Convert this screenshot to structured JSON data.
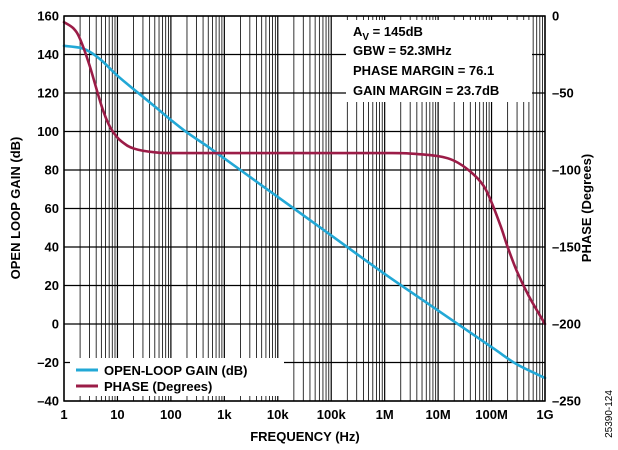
{
  "chart_data": {
    "type": "line",
    "xlabel": "FREQUENCY (Hz)",
    "ylabel_left": "OPEN LOOP GAIN (dB)",
    "ylabel_right": "PHASE (Degrees)",
    "x_scale": "log",
    "xlim": [
      1,
      1000000000
    ],
    "ylim_left": [
      -40,
      160
    ],
    "ylim_right": [
      -250,
      0
    ],
    "grid": true,
    "legend_position": "bottom-left",
    "x_ticks": [
      {
        "value": 1,
        "label": "1"
      },
      {
        "value": 10,
        "label": "10"
      },
      {
        "value": 100,
        "label": "100"
      },
      {
        "value": 1000,
        "label": "1k"
      },
      {
        "value": 10000,
        "label": "10k"
      },
      {
        "value": 100000,
        "label": "100k"
      },
      {
        "value": 1000000,
        "label": "1M"
      },
      {
        "value": 10000000,
        "label": "10M"
      },
      {
        "value": 100000000,
        "label": "100M"
      },
      {
        "value": 1000000000,
        "label": "1G"
      }
    ],
    "y_left_ticks": [
      {
        "value": 160,
        "label": "160"
      },
      {
        "value": 140,
        "label": "140"
      },
      {
        "value": 120,
        "label": "120"
      },
      {
        "value": 100,
        "label": "100"
      },
      {
        "value": 80,
        "label": "80"
      },
      {
        "value": 60,
        "label": "60"
      },
      {
        "value": 40,
        "label": "40"
      },
      {
        "value": 20,
        "label": "20"
      },
      {
        "value": 0,
        "label": "0"
      },
      {
        "value": -20,
        "label": "–20"
      },
      {
        "value": -40,
        "label": "–40"
      }
    ],
    "y_right_ticks": [
      {
        "value": 0,
        "label": "0"
      },
      {
        "value": -50,
        "label": "–50"
      },
      {
        "value": -100,
        "label": "–100"
      },
      {
        "value": -150,
        "label": "–150"
      },
      {
        "value": -200,
        "label": "–200"
      },
      {
        "value": -250,
        "label": "–250"
      }
    ],
    "annotations": [
      {
        "main": "A",
        "sub": "V",
        "rest": " = 145dB"
      },
      {
        "main": "GBW = 52.3MHz"
      },
      {
        "main": "PHASE MARGIN = 76.1"
      },
      {
        "main": "GAIN MARGIN = 23.7dB"
      }
    ],
    "series": [
      {
        "name": "OPEN-LOOP GAIN (dB)",
        "axis": "left",
        "color": "#22a8d6",
        "x": [
          1,
          2,
          3,
          5,
          10,
          20,
          50,
          100,
          200,
          500,
          1000,
          2000,
          5000,
          10000,
          100000,
          1000000,
          10000000,
          100000000,
          300000000,
          1000000000
        ],
        "y": [
          144.5,
          143.5,
          141.5,
          137,
          129,
          122,
          113,
          106,
          99.5,
          92,
          86,
          80,
          72,
          66,
          46,
          26,
          7,
          -12,
          -21,
          -28
        ]
      },
      {
        "name": "PHASE (Degrees)",
        "axis": "right",
        "color": "#9b1c47",
        "x": [
          1,
          1.5,
          2,
          3,
          5,
          7,
          10,
          15,
          20,
          30,
          50,
          100,
          1000,
          10000,
          100000,
          1000000,
          3000000,
          10000000,
          20000000,
          40000000,
          70000000,
          100000000,
          150000000,
          200000000,
          300000000,
          500000000,
          1000000000
        ],
        "y": [
          -4,
          -8,
          -15,
          -32,
          -58,
          -71,
          -79,
          -84,
          -86,
          -87.5,
          -88.5,
          -89,
          -89,
          -89,
          -89,
          -89,
          -89.3,
          -91,
          -94,
          -101,
          -110,
          -121,
          -137,
          -150,
          -166,
          -182,
          -200
        ]
      }
    ]
  },
  "figure_id": "25390-124"
}
